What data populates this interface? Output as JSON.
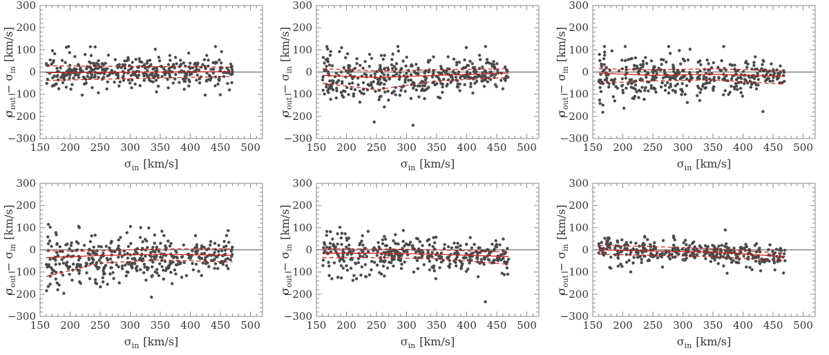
{
  "figure": {
    "type": "scatter-grid",
    "rows": 2,
    "cols": 3
  },
  "chart_data": [
    {
      "type": "scatter",
      "position": "top-left",
      "xlabel": "σ_in [km/s]",
      "ylabel": "σ_out − σ_in [km/s]",
      "xlim": [
        150,
        520
      ],
      "ylim": [
        -300,
        300
      ],
      "xticks": [
        "150",
        "200",
        "250",
        "300",
        "350",
        "400",
        "450",
        "500"
      ],
      "yticks": [
        "−300",
        "−200",
        "−100",
        "0",
        "100",
        "200",
        "300"
      ],
      "zero_line": 0,
      "point_count": 400,
      "x_range": [
        160,
        470
      ],
      "scatter_stats": {
        "bias": [
          [
            160,
            -2
          ],
          [
            470,
            0
          ]
        ],
        "spread": [
          [
            160,
            35
          ],
          [
            470,
            30
          ]
        ]
      },
      "series": [
        {
          "name": "mean",
          "style": "solid",
          "x": [
            160,
            470
          ],
          "y": [
            -3,
            2
          ]
        },
        {
          "name": "upper",
          "style": "dashed",
          "x": [
            160,
            470
          ],
          "y": [
            28,
            22
          ]
        },
        {
          "name": "lower",
          "style": "dashed",
          "x": [
            160,
            470
          ],
          "y": [
            -38,
            -20
          ]
        }
      ]
    },
    {
      "type": "scatter",
      "position": "top-center",
      "xlabel": "σ_in [km/s]",
      "ylabel": "σ_out − σ_in [km/s]",
      "xlim": [
        150,
        520
      ],
      "ylim": [
        -300,
        300
      ],
      "xticks": [
        "150",
        "200",
        "250",
        "300",
        "350",
        "400",
        "450",
        "500"
      ],
      "yticks": [
        "−300",
        "−200",
        "−100",
        "0",
        "100",
        "200",
        "300"
      ],
      "zero_line": 0,
      "point_count": 420,
      "x_range": [
        160,
        470
      ],
      "scatter_stats": {
        "bias": [
          [
            160,
            -25
          ],
          [
            260,
            -30
          ],
          [
            470,
            -5
          ]
        ],
        "spread": [
          [
            160,
            60
          ],
          [
            260,
            50
          ],
          [
            470,
            30
          ]
        ]
      },
      "series": [
        {
          "name": "mean",
          "style": "solid",
          "x": [
            160,
            250,
            350,
            470
          ],
          "y": [
            -15,
            -25,
            -15,
            -5
          ]
        },
        {
          "name": "upper",
          "style": "dashed",
          "x": [
            160,
            250,
            350,
            470
          ],
          "y": [
            15,
            5,
            10,
            15
          ]
        },
        {
          "name": "lower",
          "style": "dashed",
          "x": [
            160,
            250,
            350,
            470
          ],
          "y": [
            -50,
            -80,
            -40,
            -25
          ]
        }
      ]
    },
    {
      "type": "scatter",
      "position": "top-right",
      "xlabel": "σ_in [km/s]",
      "ylabel": "σ_out − σ_in [km/s]",
      "xlim": [
        150,
        520
      ],
      "ylim": [
        -300,
        300
      ],
      "xticks": [
        "150",
        "200",
        "250",
        "300",
        "350",
        "400",
        "450",
        "500"
      ],
      "yticks": [
        "−300",
        "−200",
        "−100",
        "0",
        "100",
        "200",
        "300"
      ],
      "zero_line": 0,
      "point_count": 400,
      "x_range": [
        160,
        470
      ],
      "scatter_stats": {
        "bias": [
          [
            160,
            -30
          ],
          [
            250,
            -20
          ],
          [
            470,
            -20
          ]
        ],
        "spread": [
          [
            160,
            65
          ],
          [
            250,
            40
          ],
          [
            470,
            35
          ]
        ]
      },
      "series": [
        {
          "name": "mean",
          "style": "solid",
          "x": [
            160,
            250,
            350,
            470
          ],
          "y": [
            -5,
            -15,
            -10,
            -20
          ]
        },
        {
          "name": "upper",
          "style": "dashed",
          "x": [
            160,
            250,
            350,
            470
          ],
          "y": [
            15,
            10,
            15,
            5
          ]
        },
        {
          "name": "lower",
          "style": "dashed",
          "x": [
            160,
            250,
            350,
            470
          ],
          "y": [
            -50,
            -40,
            -35,
            -55
          ]
        }
      ]
    },
    {
      "type": "scatter",
      "position": "bottom-left",
      "xlabel": "σ_in [km/s]",
      "ylabel": "σ_out − σ_in [km/s]",
      "xlim": [
        150,
        520
      ],
      "ylim": [
        -300,
        300
      ],
      "xticks": [
        "150",
        "200",
        "250",
        "300",
        "350",
        "400",
        "450",
        "500"
      ],
      "yticks": [
        "−300",
        "−200",
        "−100",
        "0",
        "100",
        "200",
        "300"
      ],
      "zero_line": 0,
      "point_count": 420,
      "x_range": [
        160,
        470
      ],
      "scatter_stats": {
        "bias": [
          [
            160,
            -50
          ],
          [
            250,
            -35
          ],
          [
            470,
            -25
          ]
        ],
        "spread": [
          [
            160,
            70
          ],
          [
            250,
            50
          ],
          [
            470,
            35
          ]
        ]
      },
      "series": [
        {
          "name": "mean",
          "style": "solid",
          "x": [
            160,
            250,
            350,
            470
          ],
          "y": [
            -35,
            -25,
            -20,
            -25
          ]
        },
        {
          "name": "upper",
          "style": "dashed",
          "x": [
            160,
            250,
            350,
            470
          ],
          "y": [
            -5,
            -5,
            5,
            5
          ]
        },
        {
          "name": "lower",
          "style": "dashed",
          "x": [
            160,
            250,
            350,
            470
          ],
          "y": [
            -120,
            -60,
            -45,
            -55
          ]
        }
      ]
    },
    {
      "type": "scatter",
      "position": "bottom-center",
      "xlabel": "σ_in [km/s]",
      "ylabel": "σ_out − σ_in [km/s]",
      "xlim": [
        150,
        520
      ],
      "ylim": [
        -300,
        300
      ],
      "xticks": [
        "150",
        "200",
        "250",
        "300",
        "350",
        "400",
        "450",
        "500"
      ],
      "yticks": [
        "−300",
        "−200",
        "−100",
        "0",
        "100",
        "200",
        "300"
      ],
      "zero_line": 0,
      "point_count": 400,
      "x_range": [
        160,
        470
      ],
      "scatter_stats": {
        "bias": [
          [
            160,
            -20
          ],
          [
            300,
            -20
          ],
          [
            470,
            -35
          ]
        ],
        "spread": [
          [
            160,
            55
          ],
          [
            300,
            40
          ],
          [
            470,
            35
          ]
        ]
      },
      "series": [
        {
          "name": "mean",
          "style": "solid",
          "x": [
            160,
            250,
            350,
            470
          ],
          "y": [
            -15,
            -15,
            -20,
            -30
          ]
        },
        {
          "name": "upper",
          "style": "dashed",
          "x": [
            160,
            250,
            350,
            470
          ],
          "y": [
            5,
            5,
            0,
            -10
          ]
        },
        {
          "name": "lower",
          "style": "dashed",
          "x": [
            160,
            250,
            350,
            470
          ],
          "y": [
            -35,
            -35,
            -40,
            -65
          ]
        }
      ]
    },
    {
      "type": "scatter",
      "position": "bottom-right",
      "xlabel": "σ_in [km/s]",
      "ylabel": "σ_out − σ_in [km/s]",
      "xlim": [
        150,
        520
      ],
      "ylim": [
        -300,
        300
      ],
      "xticks": [
        "150",
        "200",
        "250",
        "300",
        "350",
        "400",
        "450",
        "500"
      ],
      "yticks": [
        "−300",
        "−200",
        "−100",
        "0",
        "100",
        "200",
        "300"
      ],
      "zero_line": 0,
      "point_count": 360,
      "x_range": [
        160,
        470
      ],
      "scatter_stats": {
        "bias": [
          [
            160,
            0
          ],
          [
            300,
            -10
          ],
          [
            470,
            -35
          ]
        ],
        "spread": [
          [
            160,
            35
          ],
          [
            300,
            25
          ],
          [
            470,
            25
          ]
        ]
      },
      "series": [
        {
          "name": "mean",
          "style": "solid",
          "x": [
            160,
            250,
            350,
            470
          ],
          "y": [
            0,
            -5,
            -10,
            -30
          ]
        },
        {
          "name": "upper",
          "style": "dashed",
          "x": [
            160,
            250,
            350,
            470
          ],
          "y": [
            20,
            15,
            5,
            -15
          ]
        },
        {
          "name": "lower",
          "style": "dashed",
          "x": [
            160,
            250,
            350,
            470
          ],
          "y": [
            -20,
            -25,
            -30,
            -50
          ]
        }
      ]
    }
  ],
  "colors": {
    "points": "#4a4a4a",
    "fit_lines": "#d62020",
    "zero_line": "#555555",
    "axes": "#888888",
    "text": "#333333"
  }
}
